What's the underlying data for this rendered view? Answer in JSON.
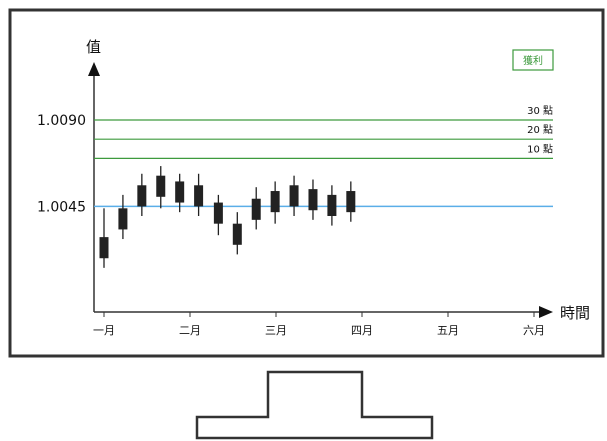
{
  "chart_data": {
    "type": "candlestick",
    "title": "",
    "ylabel": "值",
    "xlabel": "時間",
    "x_ticks": [
      "一月",
      "二月",
      "三月",
      "四月",
      "五月",
      "六月"
    ],
    "y_ticks": [
      {
        "label": "1.0090",
        "value": 1.009
      },
      {
        "label": "1.0045",
        "value": 1.0045
      }
    ],
    "ylim": [
      0.999,
      1.0115
    ],
    "xlim": [
      0.85,
      6.5
    ],
    "grid": false,
    "baseline": {
      "value": 1.0045,
      "color": "#5aaee8"
    },
    "target_box": {
      "label": "獲利",
      "color": "#3d9a3d"
    },
    "target_levels": [
      {
        "label": "30 點",
        "value": 1.009,
        "color": "#3d9a3d"
      },
      {
        "label": "20 點",
        "value": 1.008,
        "color": "#3d9a3d"
      },
      {
        "label": "10 點",
        "value": 1.007,
        "color": "#3d9a3d"
      }
    ],
    "candles": [
      {
        "x": 1.0,
        "open": 1.0018,
        "close": 1.0029,
        "high": 1.0044,
        "low": 1.0013
      },
      {
        "x": 1.22,
        "open": 1.0033,
        "close": 1.0044,
        "high": 1.0051,
        "low": 1.0028
      },
      {
        "x": 1.44,
        "open": 1.0045,
        "close": 1.0056,
        "high": 1.0062,
        "low": 1.004
      },
      {
        "x": 1.66,
        "open": 1.005,
        "close": 1.0061,
        "high": 1.0066,
        "low": 1.0044
      },
      {
        "x": 1.88,
        "open": 1.0047,
        "close": 1.0058,
        "high": 1.0062,
        "low": 1.0042
      },
      {
        "x": 2.1,
        "open": 1.0045,
        "close": 1.0056,
        "high": 1.0062,
        "low": 1.004
      },
      {
        "x": 2.33,
        "open": 1.0036,
        "close": 1.0047,
        "high": 1.0051,
        "low": 1.003
      },
      {
        "x": 2.55,
        "open": 1.0025,
        "close": 1.0036,
        "high": 1.0042,
        "low": 1.002
      },
      {
        "x": 2.77,
        "open": 1.0038,
        "close": 1.0049,
        "high": 1.0055,
        "low": 1.0033
      },
      {
        "x": 2.99,
        "open": 1.0042,
        "close": 1.0053,
        "high": 1.0058,
        "low": 1.0036
      },
      {
        "x": 3.21,
        "open": 1.0045,
        "close": 1.0056,
        "high": 1.0061,
        "low": 1.004
      },
      {
        "x": 3.43,
        "open": 1.0043,
        "close": 1.0054,
        "high": 1.0059,
        "low": 1.0038
      },
      {
        "x": 3.65,
        "open": 1.004,
        "close": 1.0051,
        "high": 1.0056,
        "low": 1.0035
      },
      {
        "x": 3.87,
        "open": 1.0042,
        "close": 1.0053,
        "high": 1.0058,
        "low": 1.0037
      }
    ],
    "monitor_colors": {
      "bezel": "#333333",
      "candle": "#222222"
    }
  }
}
